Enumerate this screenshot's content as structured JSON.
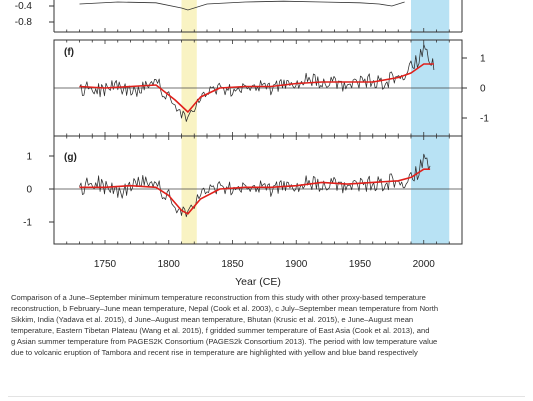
{
  "chart_data": [
    {
      "type": "line",
      "panel_label": "",
      "y_ticks": [
        -0.4,
        -0.8
      ],
      "y_side": "left",
      "series": [
        {
          "x": [
            1730,
            1760,
            1790,
            1810,
            1815,
            1830,
            1860,
            1890,
            1920,
            1950,
            1965,
            1975,
            1985
          ],
          "y": [
            -0.35,
            -0.3,
            -0.32,
            -0.45,
            -0.5,
            -0.35,
            -0.3,
            -0.28,
            -0.3,
            -0.32,
            -0.35,
            -0.4,
            -0.3
          ]
        }
      ]
    },
    {
      "type": "line",
      "panel_label": "(f)",
      "y_ticks": [
        1,
        0,
        -1
      ],
      "y_side": "right",
      "ylim": [
        -1.5,
        1.8
      ],
      "series": [
        {
          "name": "raw",
          "x": [
            1730,
            1745,
            1760,
            1775,
            1790,
            1800,
            1805,
            1810,
            1815,
            1820,
            1825,
            1835,
            1850,
            1865,
            1880,
            1895,
            1910,
            1925,
            1940,
            1955,
            1970,
            1985,
            1990,
            1995,
            2000,
            2005,
            2008
          ],
          "y": [
            0.0,
            -0.1,
            0.1,
            -0.15,
            0.2,
            -0.3,
            -0.5,
            -0.9,
            -1.1,
            -0.8,
            -0.3,
            0.0,
            -0.1,
            0.1,
            0.0,
            0.15,
            0.3,
            0.2,
            0.1,
            0.25,
            0.2,
            0.5,
            0.7,
            0.9,
            1.3,
            1.0,
            0.6
          ]
        },
        {
          "name": "smoothed",
          "x": [
            1730,
            1750,
            1770,
            1790,
            1805,
            1815,
            1825,
            1840,
            1860,
            1880,
            1900,
            1920,
            1940,
            1960,
            1980,
            1990,
            2000,
            2008
          ],
          "y": [
            0.05,
            0.0,
            0.05,
            0.1,
            -0.4,
            -0.8,
            -0.3,
            0.0,
            0.05,
            0.05,
            0.15,
            0.2,
            0.2,
            0.2,
            0.35,
            0.5,
            0.8,
            0.8
          ]
        }
      ]
    },
    {
      "type": "line",
      "panel_label": "(g)",
      "y_ticks": [
        1,
        0,
        -1
      ],
      "y_side": "left",
      "ylim": [
        -1.5,
        1.7
      ],
      "series": [
        {
          "name": "raw",
          "x": [
            1730,
            1745,
            1760,
            1775,
            1790,
            1800,
            1805,
            1810,
            1815,
            1820,
            1825,
            1835,
            1850,
            1865,
            1880,
            1895,
            1910,
            1925,
            1940,
            1955,
            1970,
            1985,
            1990,
            1995,
            2000,
            2005
          ],
          "y": [
            0.05,
            0.15,
            -0.1,
            0.2,
            0.1,
            -0.2,
            -0.5,
            -0.7,
            -0.8,
            -0.6,
            -0.1,
            0.05,
            0.0,
            0.1,
            0.0,
            0.1,
            0.2,
            0.15,
            0.1,
            0.15,
            0.2,
            0.25,
            0.3,
            0.5,
            0.9,
            0.7
          ]
        },
        {
          "name": "smoothed",
          "x": [
            1730,
            1750,
            1770,
            1790,
            1800,
            1810,
            1815,
            1825,
            1840,
            1860,
            1880,
            1900,
            1920,
            1940,
            1960,
            1980,
            1990,
            2000,
            2005
          ],
          "y": [
            0.05,
            0.05,
            0.1,
            0.05,
            -0.2,
            -0.65,
            -0.75,
            -0.3,
            0.0,
            0.05,
            0.05,
            0.1,
            0.2,
            0.15,
            0.2,
            0.25,
            0.35,
            0.6,
            0.6
          ]
        }
      ]
    }
  ],
  "x_axis": {
    "ticks": [
      1750,
      1800,
      1850,
      1900,
      1950,
      2000
    ],
    "label": "Year (CE)"
  },
  "highlights": [
    {
      "name": "tambora",
      "x_range": [
        1810,
        1822
      ],
      "color": "#f9f3c3"
    },
    {
      "name": "recent-rise",
      "x_range": [
        1990,
        2020
      ],
      "color": "#b8e2f4"
    }
  ],
  "series_colors": {
    "raw": "#2b2b2b",
    "smoothed": "#e0201b"
  },
  "caption": [
    "Comparison of a June–September minimum temperature reconstruction from this study with other proxy-based temperature",
    "reconstruction, b February–June mean temperature, Nepal (Cook et al. 2003), c July–September mean temperature from North",
    "Sikkim, India (Yadava et al. 2015), d June–August mean temperature, Bhutan (Krusic et al. 2015), e June–August mean",
    "temperature, Eastern Tibetan Plateau (Wang et al. 2015), f gridded summer temperature of East Asia (Cook et al. 2013), and",
    "g Asian summer temperature from PAGES2K Consortium (PAGES2k Consortium 2013). The period with low temperature value",
    "due to volcanic eruption of Tambora and recent rise in temperature are highlighted with yellow and blue band respectively"
  ]
}
